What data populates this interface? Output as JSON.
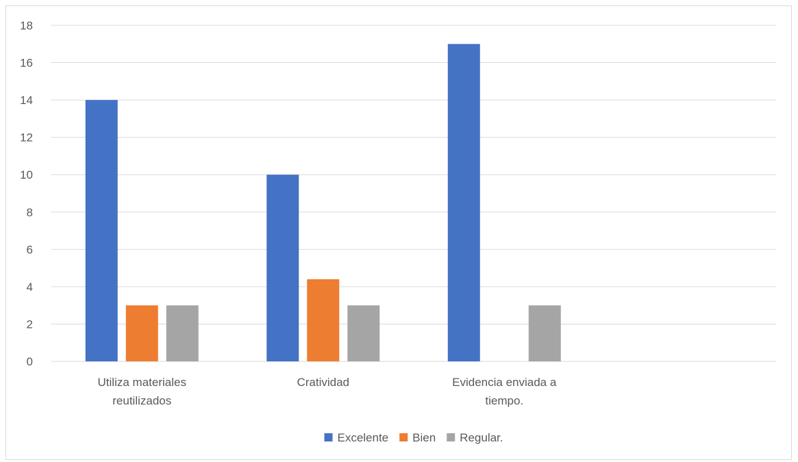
{
  "chart_data": {
    "type": "bar",
    "categories": [
      [
        "Utiliza materiales",
        "reutilizados"
      ],
      [
        "Cratividad"
      ],
      [
        "Evidencia enviada a",
        "tiempo."
      ],
      [
        ""
      ]
    ],
    "series": [
      {
        "name": "Excelente",
        "color": "#4472C4",
        "values": [
          14,
          10,
          17,
          null
        ]
      },
      {
        "name": "Bien",
        "color": "#ED7D31",
        "values": [
          3,
          4.4,
          null,
          null
        ]
      },
      {
        "name": "Regular.",
        "color": "#A5A5A5",
        "values": [
          3,
          3,
          3,
          null
        ]
      }
    ],
    "title": "",
    "xlabel": "",
    "ylabel": "",
    "ylim": [
      0,
      18
    ],
    "yticks": [
      0,
      2,
      4,
      6,
      8,
      10,
      12,
      14,
      16,
      18
    ],
    "grid": true,
    "legend": "bottom"
  }
}
